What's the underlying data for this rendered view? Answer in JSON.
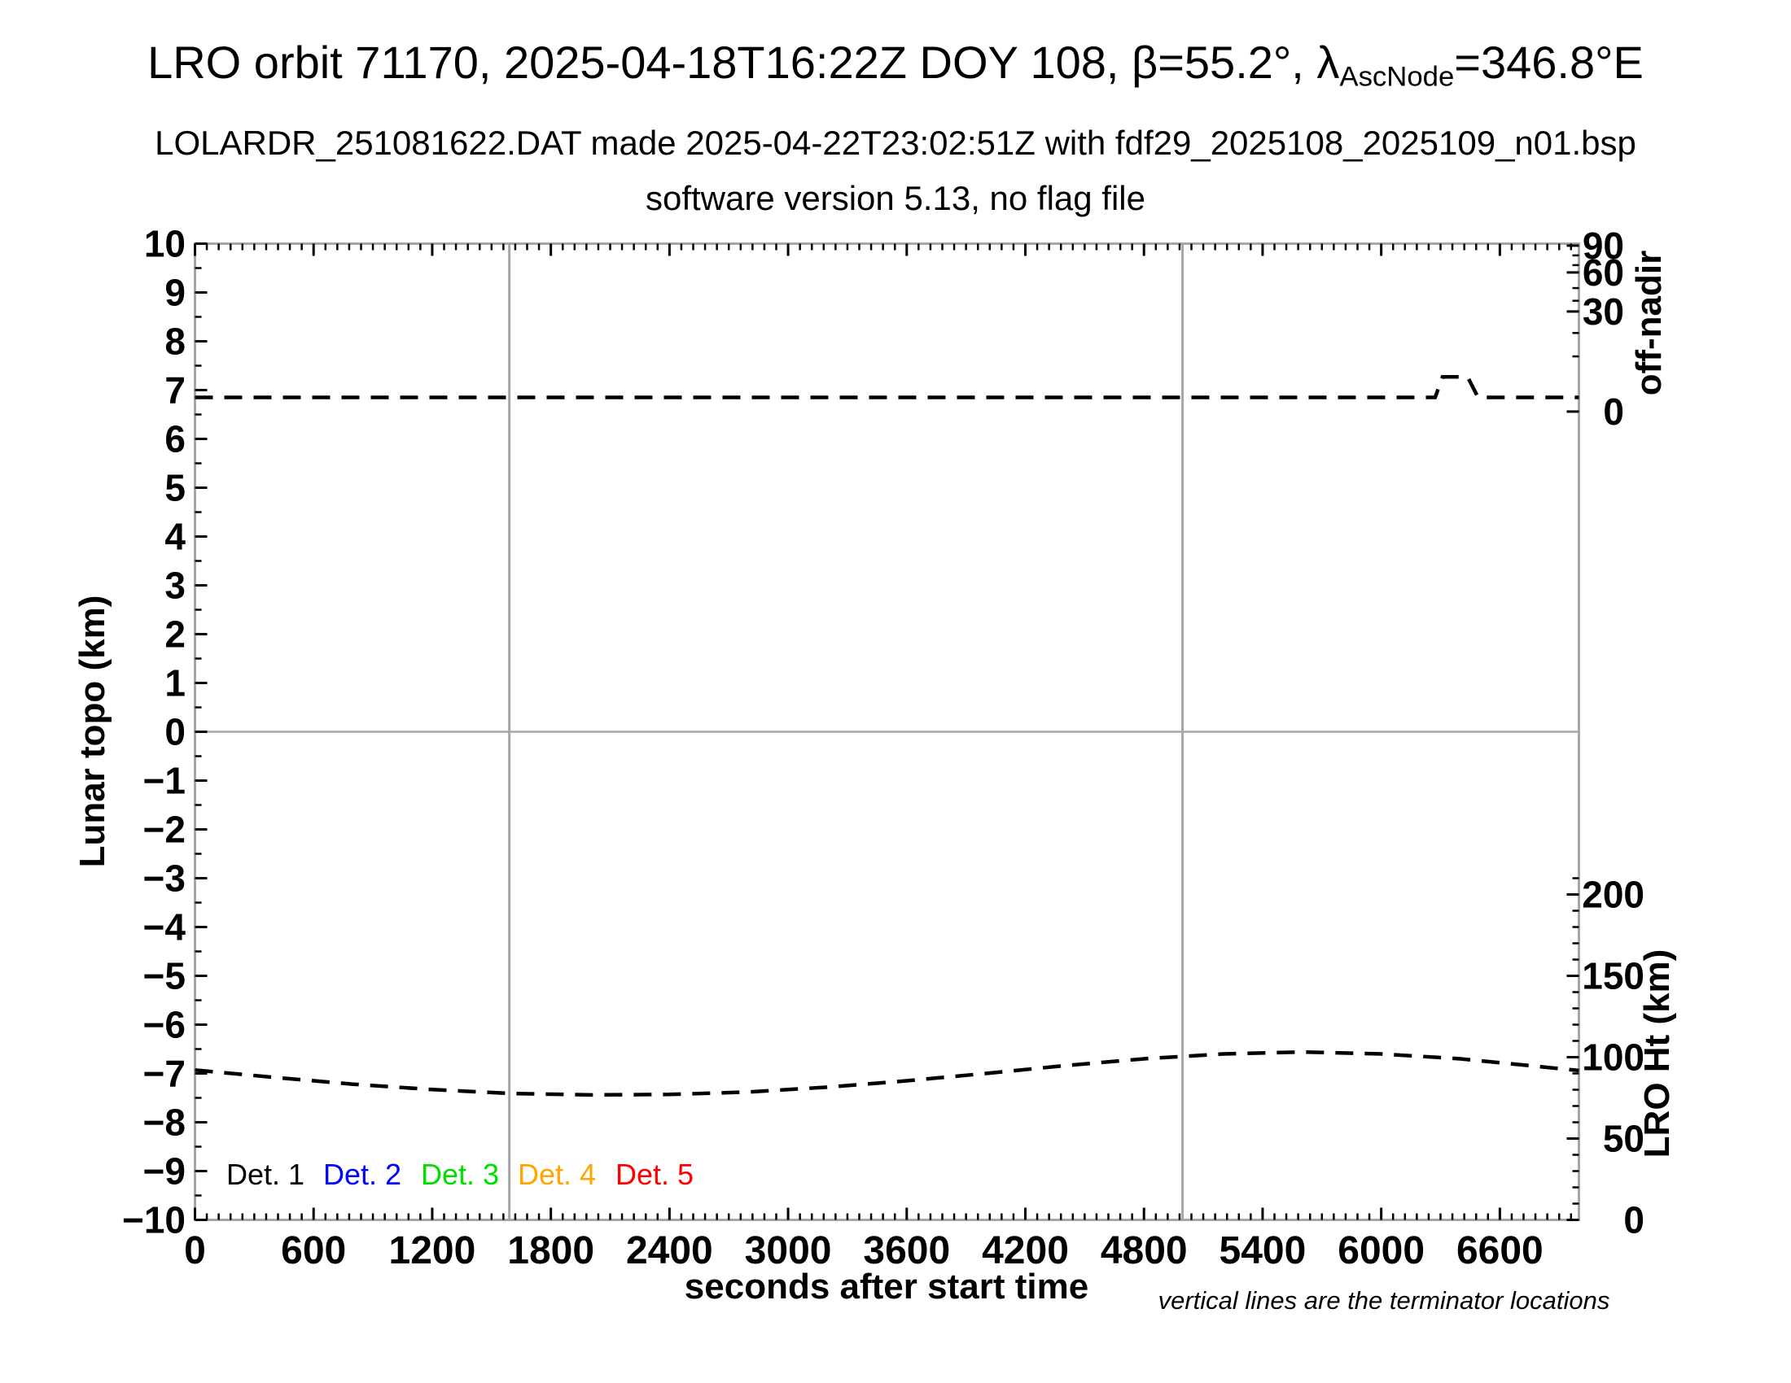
{
  "header": {
    "title_prefix": "LRO orbit 71170, 2025-04-18T16:22Z DOY 108, β=55.2°, λ",
    "title_sub": "AscNode",
    "title_suffix": "=346.8°E",
    "subtitle": "LOLARDR_251081622.DAT made 2025-04-22T23:02:51Z with fdf29_2025108_2025109_n01.bsp",
    "subtitle2": "software version 5.13, no flag file"
  },
  "legend": {
    "items": [
      {
        "label": "Det. 1",
        "color": "#000000"
      },
      {
        "label": "Det. 2",
        "color": "#0000ff"
      },
      {
        "label": "Det. 3",
        "color": "#00dd00"
      },
      {
        "label": "Det. 4",
        "color": "#ffa500"
      },
      {
        "label": "Det. 5",
        "color": "#ff0000"
      }
    ]
  },
  "footnote": "vertical lines are the terminator locations",
  "chart_data": {
    "type": "line",
    "title": "LRO orbit 71170, 2025-04-18T16:22Z DOY 108, β=55.2°, λ_AscNode=346.8°E",
    "subtitle": "LOLARDR_251081622.DAT made 2025-04-22T23:02:51Z with fdf29_2025108_2025109_n01.bsp",
    "subtitle2": "software version 5.13, no flag file",
    "xlabel": "seconds after start time",
    "ylabel_left": "Lunar topo (km)",
    "ylabel_right_top": "off-nadir",
    "ylabel_right_bottom": "LRO Ht (km)",
    "xlim": [
      0,
      7000
    ],
    "ylim_left": [
      -10,
      10
    ],
    "grid": "off",
    "x_major_ticks": [
      0,
      600,
      1200,
      1800,
      2400,
      3000,
      3600,
      4200,
      4800,
      5400,
      6000,
      6600
    ],
    "x_minor_step": 60,
    "left_major_step": 1,
    "left_minor_step": 0.5,
    "right_top_axis": {
      "title": "off-nadir",
      "ticks": [
        {
          "v": 90,
          "y_topo": 9.96,
          "major": true
        },
        {
          "v": 80,
          "y_topo": 9.76,
          "major": false
        },
        {
          "v": 70,
          "y_topo": 9.56,
          "major": false
        },
        {
          "v": 60,
          "y_topo": 9.41,
          "major": true
        },
        {
          "v": 50,
          "y_topo": 9.09,
          "major": false
        },
        {
          "v": 40,
          "y_topo": 8.83,
          "major": false
        },
        {
          "v": 30,
          "y_topo": 8.61,
          "major": true
        },
        {
          "v": 20,
          "y_topo": 8.17,
          "major": false
        },
        {
          "v": 10,
          "y_topo": 7.69,
          "major": false
        },
        {
          "v": 0,
          "y_topo": 6.56,
          "major": true
        }
      ]
    },
    "right_bottom_axis": {
      "title": "LRO Ht (km)",
      "tick_min": 0,
      "tick_max": 210,
      "tick_step": 10,
      "major_every": 50,
      "y_topo_slope": 0.0333333,
      "y_topo_intercept": -10
    },
    "terminator_lines_x": [
      1590,
      4995
    ],
    "horizontal_reference_y": 0,
    "series": [
      {
        "name": "spacecraft off-nadir pointing (right top axis, ~0° with slew near 6300–6500 s)",
        "color": "#000000",
        "style": "dashed",
        "x": [
          0,
          6273,
          6310,
          6437,
          6490,
          7000
        ],
        "y_topo": [
          6.85,
          6.85,
          7.27,
          7.27,
          6.85,
          6.85
        ]
      },
      {
        "name": "LRO height above surface (right bottom axis)",
        "color": "#000000",
        "style": "dashed",
        "x": [
          0,
          400,
          800,
          1200,
          1600,
          2000,
          2400,
          2800,
          3200,
          3600,
          4000,
          4400,
          4800,
          5200,
          5600,
          6000,
          6400,
          6800,
          7000
        ],
        "y_topo": [
          -6.93,
          -7.08,
          -7.22,
          -7.33,
          -7.41,
          -7.44,
          -7.43,
          -7.38,
          -7.28,
          -7.15,
          -7.0,
          -6.84,
          -6.7,
          -6.6,
          -6.56,
          -6.6,
          -6.7,
          -6.86,
          -6.94
        ],
        "y_km": [
          92.1,
          87.6,
          83.4,
          80.1,
          77.7,
          76.8,
          77.1,
          78.6,
          81.6,
          85.5,
          90.0,
          94.8,
          99.0,
          102.0,
          103.2,
          102.0,
          99.0,
          94.2,
          91.8
        ]
      }
    ],
    "legend_entries": [
      "Det. 1",
      "Det. 2",
      "Det. 3",
      "Det. 4",
      "Det. 5"
    ],
    "legend_colors": [
      "#000000",
      "#0000ff",
      "#00dd00",
      "#ffa500",
      "#ff0000"
    ],
    "annotation": "vertical lines are the terminator locations"
  }
}
